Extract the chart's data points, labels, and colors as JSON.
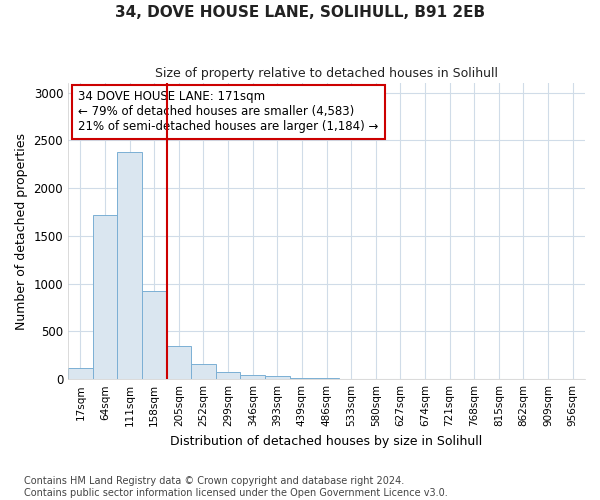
{
  "title": "34, DOVE HOUSE LANE, SOLIHULL, B91 2EB",
  "subtitle": "Size of property relative to detached houses in Solihull",
  "xlabel": "Distribution of detached houses by size in Solihull",
  "ylabel": "Number of detached properties",
  "bar_color": "#dae6f0",
  "bar_edge_color": "#7bafd4",
  "categories": [
    "17sqm",
    "64sqm",
    "111sqm",
    "158sqm",
    "205sqm",
    "252sqm",
    "299sqm",
    "346sqm",
    "393sqm",
    "439sqm",
    "486sqm",
    "533sqm",
    "580sqm",
    "627sqm",
    "674sqm",
    "721sqm",
    "768sqm",
    "815sqm",
    "862sqm",
    "909sqm",
    "956sqm"
  ],
  "values": [
    120,
    1720,
    2380,
    920,
    350,
    155,
    80,
    40,
    30,
    15,
    10,
    0,
    0,
    0,
    0,
    0,
    0,
    0,
    0,
    0,
    0
  ],
  "ylim": [
    0,
    3100
  ],
  "yticks": [
    0,
    500,
    1000,
    1500,
    2000,
    2500,
    3000
  ],
  "line_color": "#cc0000",
  "line_bin": 3.5,
  "annotation_line1": "34 DOVE HOUSE LANE: 171sqm",
  "annotation_line2": "← 79% of detached houses are smaller (4,583)",
  "annotation_line3": "21% of semi-detached houses are larger (1,184) →",
  "annotation_box_fc": "#ffffff",
  "annotation_box_ec": "#cc0000",
  "footer": "Contains HM Land Registry data © Crown copyright and database right 2024.\nContains public sector information licensed under the Open Government Licence v3.0.",
  "background_color": "#ffffff",
  "grid_color": "#d0dce8"
}
